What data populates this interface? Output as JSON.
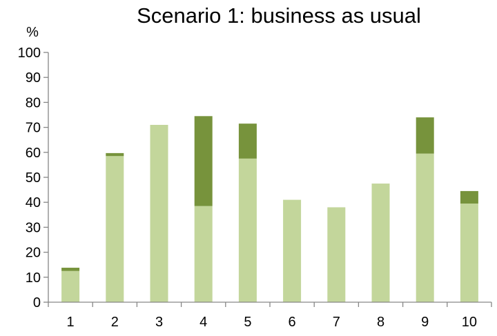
{
  "chart_data": {
    "type": "bar",
    "stacked": true,
    "title": "Scenario 1: business as usual",
    "ylabel": "%",
    "xlabel": "",
    "categories": [
      "1",
      "2",
      "3",
      "4",
      "5",
      "6",
      "7",
      "8",
      "9",
      "10"
    ],
    "series": [
      {
        "color": "#c3d69b",
        "values": [
          12.5,
          58.5,
          71,
          38.5,
          57.5,
          41,
          38,
          47.5,
          59.5,
          39.5
        ]
      },
      {
        "color": "#77933c",
        "values": [
          1.3,
          1.2,
          0,
          36,
          14,
          0,
          0,
          0,
          14.5,
          5
        ]
      }
    ],
    "ylim": [
      0,
      100
    ],
    "yticks": [
      0,
      10,
      20,
      30,
      40,
      50,
      60,
      70,
      80,
      90,
      100
    ],
    "grid": false,
    "legend": "none"
  }
}
